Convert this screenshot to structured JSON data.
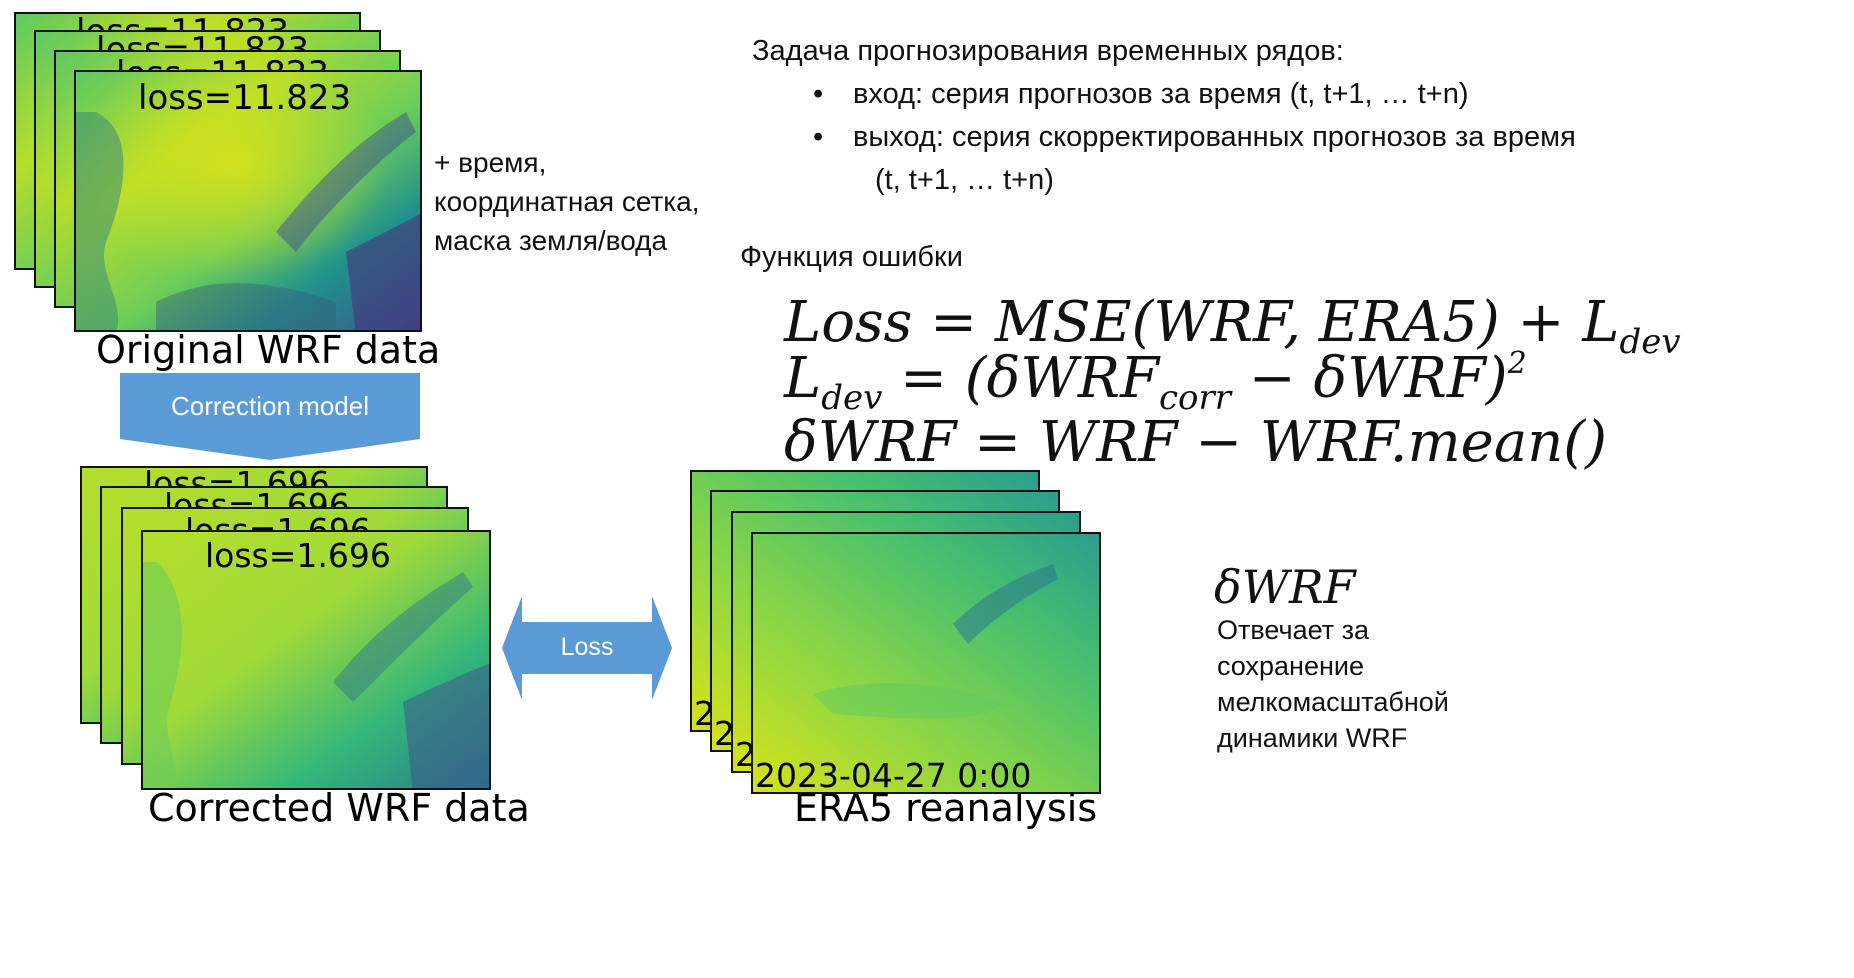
{
  "wrf_original": {
    "loss_label": "loss=11.823",
    "caption": "Original WRF data",
    "extra_inputs": [
      "+ время,",
      "координатная сетка,",
      "маска земля/вода"
    ]
  },
  "correction_model": {
    "label": "Correction model"
  },
  "wrf_corrected": {
    "loss_label": "loss=1.696",
    "caption": "Corrected WRF data"
  },
  "loss_arrow": {
    "label": "Loss"
  },
  "era5": {
    "date_label": "2023-04-27 0:00",
    "partial_label": "2",
    "caption": "ERA5 reanalysis"
  },
  "task": {
    "title": "Задача прогнозирования временных рядов:",
    "input": "вход: серия прогнозов за время (t, t+1, … t+n)",
    "output_line1": "выход: серия скорректированных прогнозов за время",
    "output_line2": "(t, t+1, … t+n)"
  },
  "loss_function": {
    "title": "Функция ошибки",
    "line1_a": "Loss = MSE(WRF, ERA5) + L",
    "line1_sub": "dev",
    "line2_a": "L",
    "line2_sub_a": "dev",
    "line2_b": " = (δWRF",
    "line2_sub_b": "corr",
    "line2_c": " − δWRF)",
    "line2_sup": "2",
    "line3": "δWRF = WRF − WRF.mean()"
  },
  "dwrf_note": {
    "symbol": "δWRF",
    "lines": [
      "Отвечает за",
      "сохранение",
      "мелкомасштабной",
      "динамики WRF"
    ]
  },
  "colors": {
    "arrow_fill": "#5b9bd5",
    "arrow_text": "#ffffff",
    "viridis_yellow": "#d8e219",
    "viridis_green": "#5ec962",
    "viridis_teal": "#21918c",
    "viridis_blue": "#3b528b",
    "viridis_purple": "#440154"
  }
}
